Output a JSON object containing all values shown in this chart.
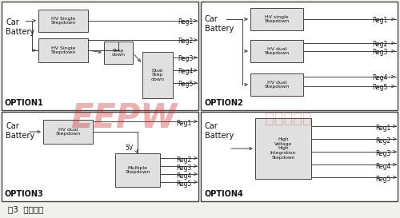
{
  "bg_color": "#f0f0ec",
  "panel_color": "#ffffff",
  "border_color": "#444444",
  "box_color": "#e0e0e0",
  "text_color": "#111111",
  "title": "图3  电源结构",
  "watermark_color": "#cc2222",
  "opt1_label": "OPTION1",
  "opt2_label": "OPTION2",
  "opt3_label": "OPTION3",
  "opt4_label": "OPTION4",
  "regs": [
    "Reg1",
    "Reg2",
    "Reg3",
    "Reg4",
    "Reg5"
  ]
}
